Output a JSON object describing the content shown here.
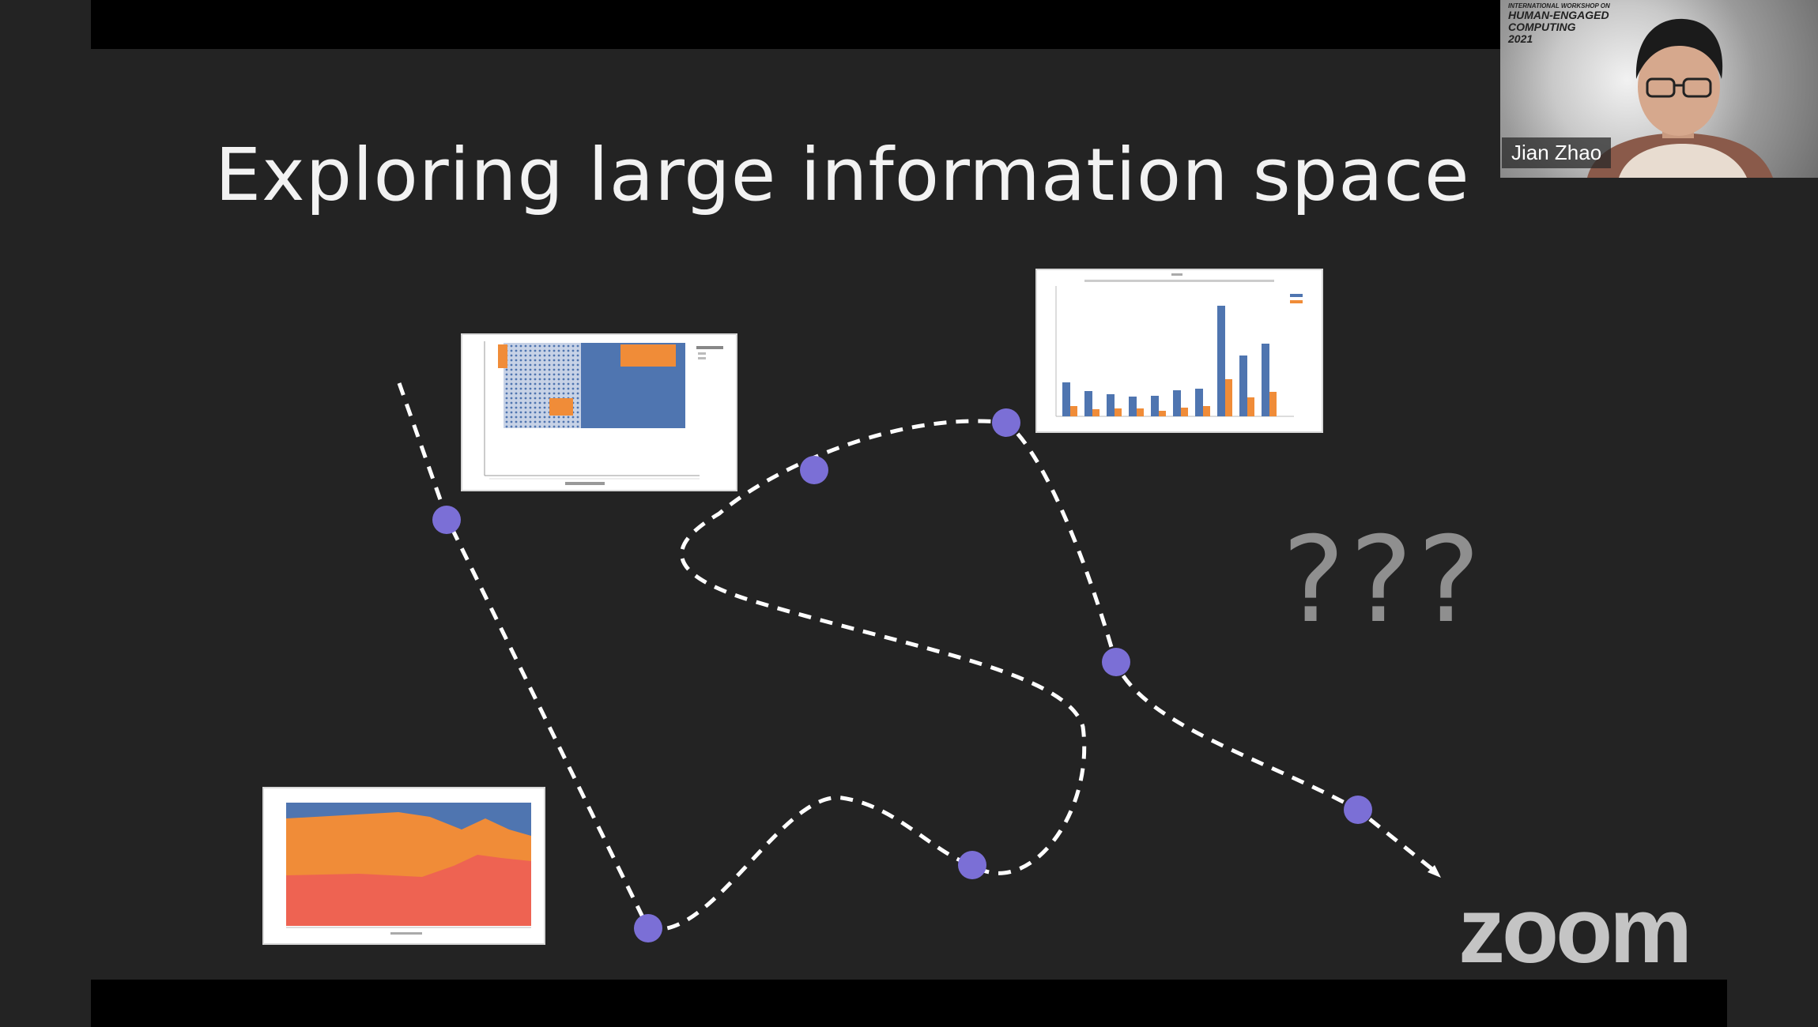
{
  "slide": {
    "title": "Exploring large information space",
    "question_marks": "???"
  },
  "video": {
    "presenter_name": "Jian Zhao",
    "workshop_line1": "INTERNATIONAL WORKSHOP ON",
    "workshop_line2": "HUMAN-ENGAGED COMPUTING",
    "workshop_year": "2021"
  },
  "branding": {
    "logo_text": "zoom"
  },
  "colors": {
    "path": "#ffffff",
    "node": "#7b6fd6",
    "series_blue": "#4f75b0",
    "series_orange": "#f08c38",
    "series_red": "#ee6352",
    "logo": "#c4c4c4"
  },
  "thumbnails": [
    {
      "kind": "scatter",
      "icon": "scatter-plot-thumbnail"
    },
    {
      "kind": "bar",
      "icon": "bar-chart-thumbnail"
    },
    {
      "kind": "area",
      "icon": "stacked-area-thumbnail"
    }
  ]
}
